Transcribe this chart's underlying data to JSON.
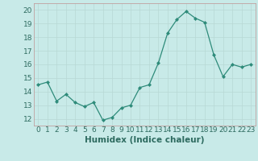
{
  "x": [
    0,
    1,
    2,
    3,
    4,
    5,
    6,
    7,
    8,
    9,
    10,
    11,
    12,
    13,
    14,
    15,
    16,
    17,
    18,
    19,
    20,
    21,
    22,
    23
  ],
  "y": [
    14.5,
    14.7,
    13.3,
    13.8,
    13.2,
    12.9,
    13.2,
    11.9,
    12.1,
    12.8,
    13.0,
    14.3,
    14.5,
    16.1,
    18.3,
    19.3,
    19.9,
    19.4,
    19.1,
    16.7,
    15.1,
    16.0,
    15.8,
    16.0
  ],
  "line_color": "#2e8b7a",
  "marker_color": "#2e8b7a",
  "bg_color": "#c8eae8",
  "grid_major_color": "#b8d8d4",
  "grid_minor_color": "#d8ecea",
  "xlabel": "Humidex (Indice chaleur)",
  "xlim": [
    -0.5,
    23.5
  ],
  "ylim": [
    11.5,
    20.5
  ],
  "yticks": [
    12,
    13,
    14,
    15,
    16,
    17,
    18,
    19,
    20
  ],
  "xticks": [
    0,
    1,
    2,
    3,
    4,
    5,
    6,
    7,
    8,
    9,
    10,
    11,
    12,
    13,
    14,
    15,
    16,
    17,
    18,
    19,
    20,
    21,
    22,
    23
  ],
  "xtick_labels": [
    "0",
    "1",
    "2",
    "3",
    "4",
    "5",
    "6",
    "7",
    "8",
    "9",
    "10",
    "11",
    "12",
    "13",
    "14",
    "15",
    "16",
    "17",
    "18",
    "19",
    "20",
    "21",
    "22",
    "23"
  ],
  "tick_fontsize": 6.5,
  "xlabel_fontsize": 7.5
}
